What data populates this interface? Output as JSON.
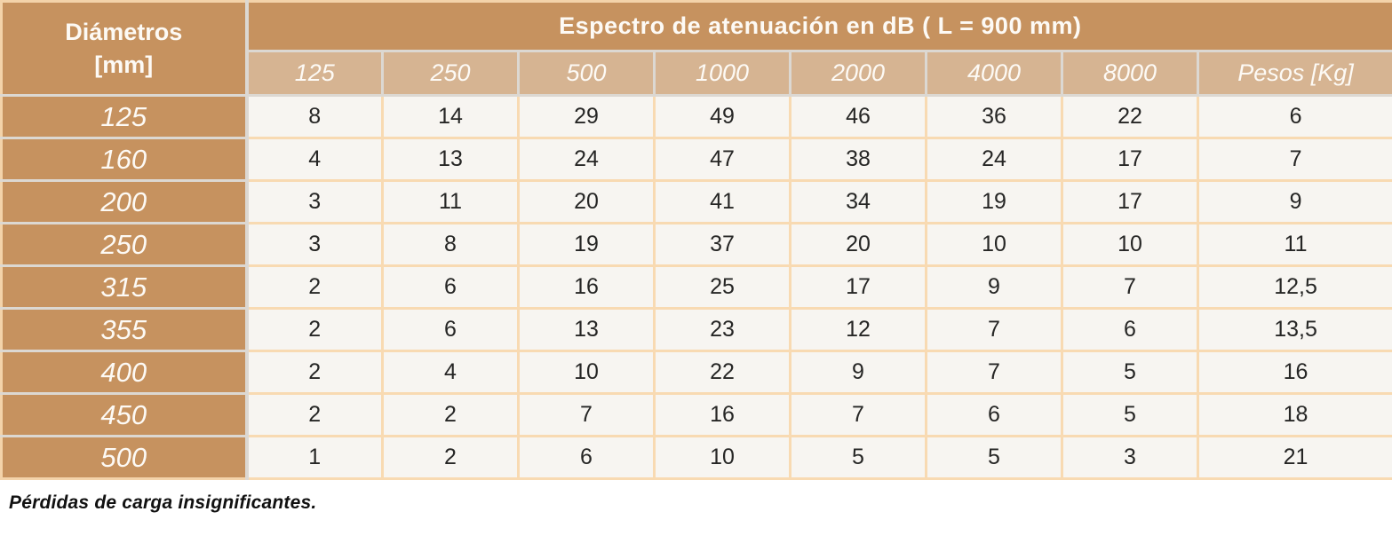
{
  "page": {
    "background": "#ffffff"
  },
  "table": {
    "corner_header": "Diámetros\n[mm]",
    "main_header": "Espectro de atenuación en dB ( L = 900 mm)",
    "frequency_headers": [
      "125",
      "250",
      "500",
      "1000",
      "2000",
      "4000",
      "8000"
    ],
    "weight_header": "Pesos [Kg]",
    "rows": [
      {
        "diameter": "125",
        "values": [
          "8",
          "14",
          "29",
          "49",
          "46",
          "36",
          "22"
        ],
        "weight": "6"
      },
      {
        "diameter": "160",
        "values": [
          "4",
          "13",
          "24",
          "47",
          "38",
          "24",
          "17"
        ],
        "weight": "7"
      },
      {
        "diameter": "200",
        "values": [
          "3",
          "11",
          "20",
          "41",
          "34",
          "19",
          "17"
        ],
        "weight": "9"
      },
      {
        "diameter": "250",
        "values": [
          "3",
          "8",
          "19",
          "37",
          "20",
          "10",
          "10"
        ],
        "weight": "11"
      },
      {
        "diameter": "315",
        "values": [
          "2",
          "6",
          "16",
          "25",
          "17",
          "9",
          "7"
        ],
        "weight": "12,5"
      },
      {
        "diameter": "355",
        "values": [
          "2",
          "6",
          "13",
          "23",
          "12",
          "7",
          "6"
        ],
        "weight": "13,5"
      },
      {
        "diameter": "400",
        "values": [
          "2",
          "4",
          "10",
          "22",
          "9",
          "7",
          "5"
        ],
        "weight": "16"
      },
      {
        "diameter": "450",
        "values": [
          "2",
          "2",
          "7",
          "16",
          "7",
          "6",
          "5"
        ],
        "weight": "18"
      },
      {
        "diameter": "500",
        "values": [
          "1",
          "2",
          "6",
          "10",
          "5",
          "5",
          "3"
        ],
        "weight": "21"
      }
    ]
  },
  "footnote": "Pérdidas de carga insignificantes.",
  "colors": {
    "header_brown": "#c6925f",
    "subheader_tan": "#d6b492",
    "cell_cream": "#f7f5f1",
    "grid_peach": "#f8dab2",
    "outer_border_peach": "#f3d3aa",
    "header_separator": "#dcd8d2",
    "text_dark": "#262625",
    "text_white": "#fdfaf5"
  }
}
